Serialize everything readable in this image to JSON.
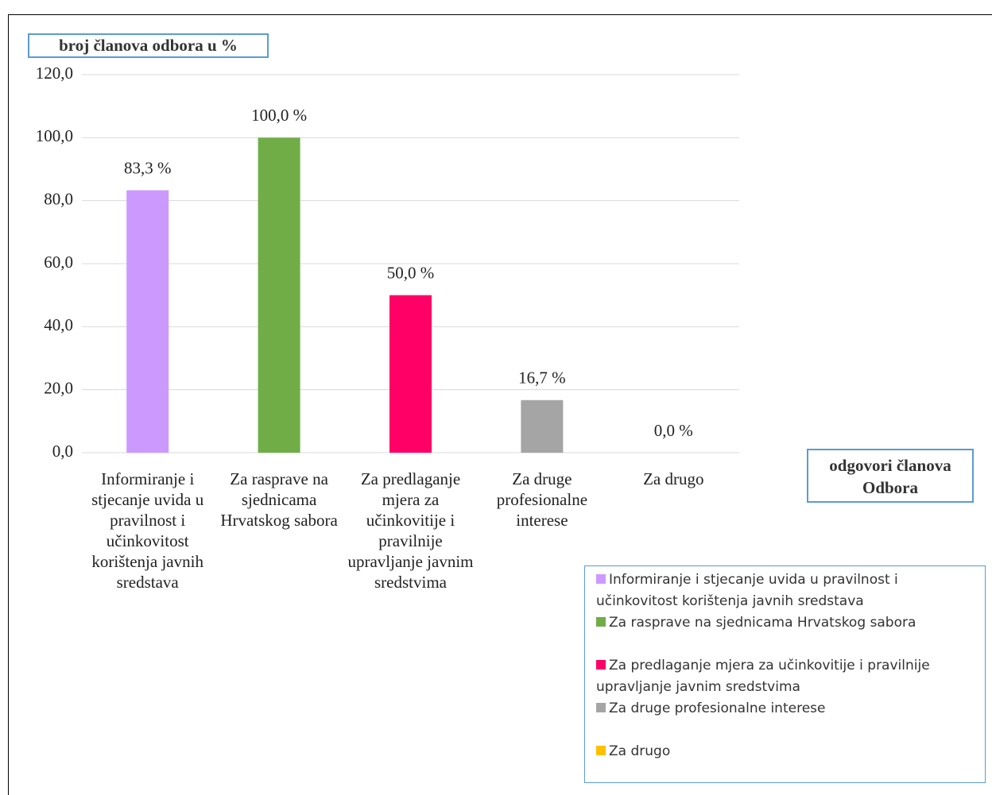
{
  "chart_data": {
    "type": "bar",
    "y_axis_title": "broj članova odbora u %",
    "x_axis_title": "odgovori članova Odbora",
    "categories": [
      "Informiranje i stjecanje uvida u pravilnost i učinkovitost korištenja javnih sredstava",
      "Za rasprave na sjednicama Hrvatskog sabora",
      "Za predlaganje mjera za učinkovitije i pravilnije upravljanje javnim sredstvima",
      "Za druge profesionalne interese",
      "Za drugo"
    ],
    "values": [
      83.3,
      100.0,
      50.0,
      16.7,
      0.0
    ],
    "value_labels": [
      "83,3 %",
      "100,0 %",
      "50,0 %",
      "16,7 %",
      "0,0 %"
    ],
    "colors": [
      "#cc99ff",
      "#70ad47",
      "#ff0066",
      "#a5a5a5",
      "#ffc000"
    ],
    "ylim": [
      0,
      120
    ],
    "yticks": [
      {
        "value": 0,
        "label": "0,0"
      },
      {
        "value": 20,
        "label": "20,0"
      },
      {
        "value": 40,
        "label": "40,0"
      },
      {
        "value": 60,
        "label": "60,0"
      },
      {
        "value": 80,
        "label": "80,0"
      },
      {
        "value": 100,
        "label": "100,0"
      },
      {
        "value": 120,
        "label": "120,0"
      }
    ],
    "grid": true,
    "legend": "bottom-right"
  }
}
